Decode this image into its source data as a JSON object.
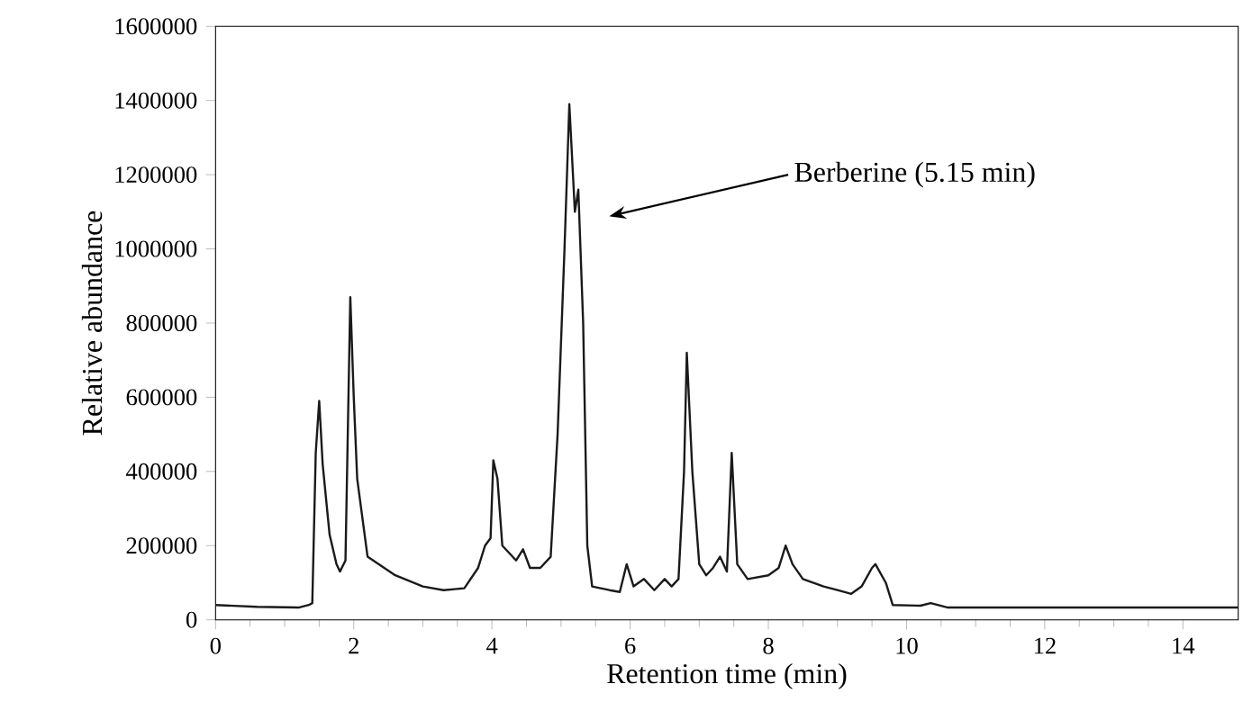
{
  "chart_data": {
    "type": "line",
    "xlabel": "Retention time (min)",
    "ylabel": "Relative abundance",
    "xlim": [
      0,
      14.8
    ],
    "xticks": [
      0,
      2,
      4,
      6,
      8,
      10,
      12,
      14
    ],
    "ylim": [
      0,
      1600000
    ],
    "yticks": [
      0,
      200000,
      400000,
      600000,
      800000,
      1000000,
      1200000,
      1400000,
      1600000
    ],
    "marker": "none",
    "line_style": "solid",
    "annotations": [
      "Berberine (5.15 min)"
    ],
    "series": [
      {
        "color": "#1a1a1a",
        "x": [
          0,
          0.6,
          1.2,
          1.35,
          1.4,
          1.45,
          1.5,
          1.55,
          1.65,
          1.75,
          1.8,
          1.88,
          1.95,
          2.0,
          2.05,
          2.2,
          2.6,
          3.0,
          3.3,
          3.6,
          3.8,
          3.9,
          3.98,
          4.02,
          4.08,
          4.15,
          4.35,
          4.45,
          4.55,
          4.7,
          4.85,
          4.95,
          5.05,
          5.12,
          5.2,
          5.25,
          5.32,
          5.38,
          5.45,
          5.7,
          5.85,
          5.95,
          6.05,
          6.2,
          6.35,
          6.5,
          6.6,
          6.7,
          6.78,
          6.82,
          6.9,
          7.0,
          7.1,
          7.2,
          7.3,
          7.4,
          7.47,
          7.55,
          7.7,
          8.0,
          8.15,
          8.25,
          8.35,
          8.5,
          8.8,
          9.0,
          9.2,
          9.35,
          9.5,
          9.55,
          9.7,
          9.8,
          10.2,
          10.35,
          10.6,
          14.8
        ],
        "values": [
          40000,
          35000,
          33000,
          40000,
          45000,
          450000,
          590000,
          420000,
          230000,
          150000,
          130000,
          160000,
          870000,
          600000,
          380000,
          170000,
          120000,
          90000,
          80000,
          85000,
          140000,
          200000,
          220000,
          430000,
          380000,
          200000,
          160000,
          190000,
          140000,
          140000,
          170000,
          500000,
          1000000,
          1390000,
          1100000,
          1160000,
          800000,
          200000,
          90000,
          80000,
          75000,
          150000,
          90000,
          110000,
          80000,
          110000,
          90000,
          110000,
          400000,
          720000,
          400000,
          150000,
          120000,
          140000,
          170000,
          130000,
          450000,
          150000,
          110000,
          120000,
          140000,
          200000,
          150000,
          110000,
          90000,
          80000,
          70000,
          90000,
          140000,
          150000,
          100000,
          40000,
          38000,
          45000,
          33000,
          33000
        ]
      }
    ]
  }
}
